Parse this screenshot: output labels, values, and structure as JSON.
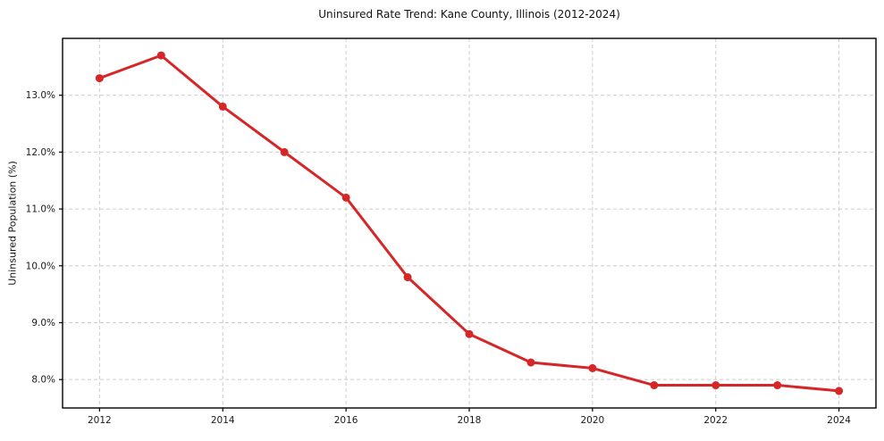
{
  "chart_data": {
    "type": "line",
    "title": "Uninsured Rate Trend: Kane County, Illinois (2012-2024)",
    "xlabel": "",
    "ylabel": "Uninsured Population (%)",
    "x": [
      2012,
      2013,
      2014,
      2015,
      2016,
      2017,
      2018,
      2019,
      2020,
      2021,
      2022,
      2023,
      2024
    ],
    "series": [
      {
        "values": [
          13.3,
          13.7,
          12.8,
          12.0,
          11.2,
          9.8,
          8.8,
          8.3,
          8.2,
          7.9,
          7.9,
          7.9,
          7.8
        ],
        "color": "#d62728",
        "marker": "circle"
      }
    ],
    "xlim": [
      2011.4,
      2024.6
    ],
    "ylim": [
      7.5,
      14.0
    ],
    "xticks": [
      2012,
      2014,
      2016,
      2018,
      2020,
      2022,
      2024
    ],
    "xtick_labels": [
      "2012",
      "2014",
      "2016",
      "2018",
      "2020",
      "2022",
      "2024"
    ],
    "yticks": [
      8.0,
      9.0,
      10.0,
      11.0,
      12.0,
      13.0
    ],
    "ytick_labels": [
      "8.0%",
      "9.0%",
      "10.0%",
      "11.0%",
      "12.0%",
      "13.0%"
    ],
    "grid": "dashed",
    "grid_color": "#cccccc",
    "spine_color": "#000000",
    "background": "#ffffff",
    "legend": "none"
  }
}
